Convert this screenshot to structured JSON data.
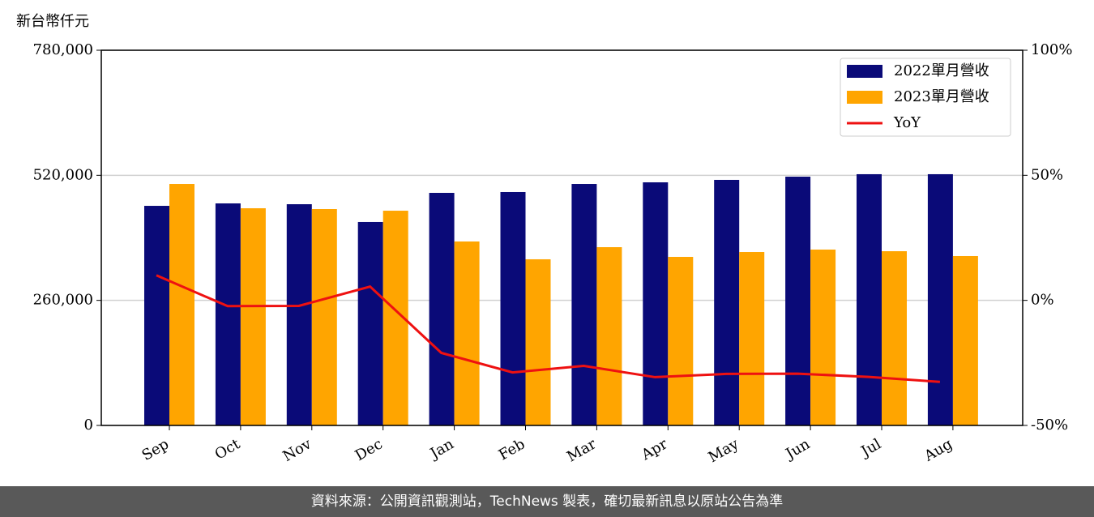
{
  "chart_data": {
    "type": "bar",
    "y_label": "新台幣仟元",
    "categories": [
      "Sep",
      "Oct",
      "Nov",
      "Dec",
      "Jan",
      "Feb",
      "Mar",
      "Apr",
      "May",
      "Jun",
      "Jul",
      "Aug"
    ],
    "series": [
      {
        "name": "2022單月營收",
        "color": "#0a0a78",
        "type": "bar",
        "axis": "y",
        "values": [
          456500,
          461600,
          459900,
          422900,
          483500,
          485200,
          502000,
          505400,
          510500,
          517200,
          522300,
          522300
        ]
      },
      {
        "name": "2023單月營收",
        "color": "#ffa500",
        "type": "bar",
        "axis": "y",
        "values": [
          502000,
          451500,
          449800,
          446400,
          382400,
          345400,
          370600,
          350400,
          360500,
          365600,
          362200,
          352100
        ]
      },
      {
        "name": "YoY",
        "color": "#ee1111",
        "type": "line",
        "axis": "y2",
        "values": [
          10,
          -2.3,
          -2.2,
          5.5,
          -21,
          -28.8,
          -26.2,
          -30.7,
          -29.4,
          -29.3,
          -30.6,
          -32.6
        ]
      }
    ],
    "ylim": [
      0,
      780000
    ],
    "yticks": [
      0,
      {
        "value": 260000,
        "label": "260,000"
      },
      {
        "value": 520000,
        "label": "520,000"
      },
      {
        "value": 780000,
        "label": "780,000"
      }
    ],
    "y2lim": [
      -50,
      100
    ],
    "y2ticks": [
      {
        "value": -50,
        "label": "-50%"
      },
      {
        "value": 0,
        "label": "0%"
      },
      {
        "value": 50,
        "label": "50%"
      },
      {
        "value": 100,
        "label": "100%"
      }
    ],
    "grid": true,
    "legend": "upper right"
  },
  "footer": "資料來源：公開資訊觀測站，TechNews 製表，確切最新訊息以原站公告為準"
}
